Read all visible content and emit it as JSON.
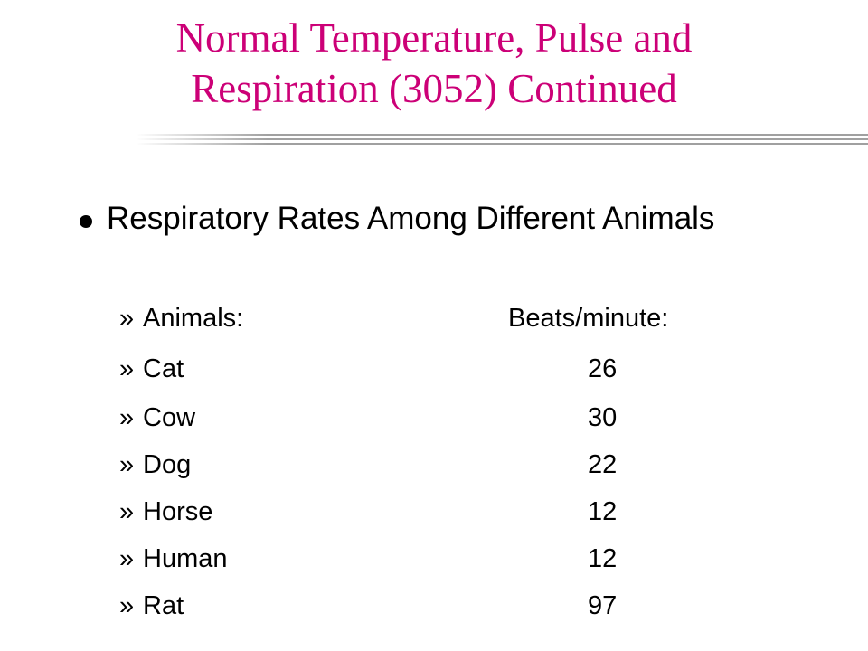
{
  "slide": {
    "title_line1": "Normal Temperature, Pulse and",
    "title_line2": "Respiration (3052) Continued",
    "bullet": "Respiratory Rates Among Different Animals",
    "marker": "»",
    "header_animal": "Animals:",
    "header_value": "Beats/minute:",
    "rows": [
      {
        "animal": "Cat",
        "value": "26"
      },
      {
        "animal": "Cow",
        "value": "30"
      },
      {
        "animal": "Dog",
        "value": "22"
      },
      {
        "animal": "Horse",
        "value": "12"
      },
      {
        "animal": "Human",
        "value": "12"
      },
      {
        "animal": "Rat",
        "value": "97"
      }
    ]
  },
  "colors": {
    "title": "#cc0077",
    "rule": "#a0a0a0"
  }
}
